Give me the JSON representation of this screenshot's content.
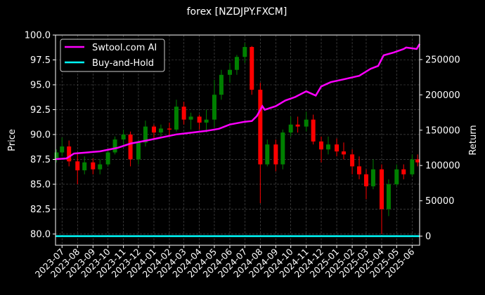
{
  "chart_data": {
    "type": "candlestick+line",
    "title": "forex [NZDJPY.FXCM]",
    "ylabel_left": "Price",
    "ylabel_right": "Return",
    "xlim": [
      "2023-06-18",
      "2025-06-16"
    ],
    "ylim_left": [
      78.87,
      100.0
    ],
    "ylim_right": [
      -12900,
      284700
    ],
    "yticks_left": [
      "80.0",
      "82.5",
      "85.0",
      "87.5",
      "90.0",
      "92.5",
      "95.0",
      "97.5",
      "100.0"
    ],
    "yticks_right": [
      "0",
      "50000",
      "100000",
      "150000",
      "200000",
      "250000"
    ],
    "xticks": [
      "2023-07",
      "2023-08",
      "2023-09",
      "2023-10",
      "2023-11",
      "2023-12",
      "2024-01",
      "2024-02",
      "2024-03",
      "2024-04",
      "2024-05",
      "2024-06",
      "2024-07",
      "2024-08",
      "2024-09",
      "2024-10",
      "2024-11",
      "2024-12",
      "2025-01",
      "2025-02",
      "2025-03",
      "2025-04",
      "2025-05",
      "2025-06"
    ],
    "grid": true,
    "legend_placement": "top-left",
    "colors": {
      "background": "#000000",
      "up": "#008000",
      "down": "#ff0000",
      "strategy": "#ff00ff",
      "buy_hold": "#00ffff",
      "grid": "#555555",
      "axis": "#ffffff"
    },
    "candles_columns": [
      "date",
      "open",
      "high",
      "low",
      "close"
    ],
    "candles": [
      [
        "2023-06-20",
        87.5,
        88.5,
        87.2,
        88.2
      ],
      [
        "2023-07-01",
        88.2,
        89.7,
        87.8,
        88.8
      ],
      [
        "2023-07-15",
        88.8,
        89.4,
        86.8,
        87.3
      ],
      [
        "2023-08-01",
        87.3,
        88.2,
        85.0,
        86.4
      ],
      [
        "2023-08-15",
        86.4,
        87.8,
        86.0,
        87.2
      ],
      [
        "2023-09-01",
        87.2,
        87.6,
        86.0,
        86.5
      ],
      [
        "2023-09-15",
        86.5,
        87.5,
        86.0,
        87.0
      ],
      [
        "2023-10-01",
        87.0,
        88.5,
        86.8,
        88.2
      ],
      [
        "2023-10-15",
        88.2,
        89.8,
        88.0,
        89.5
      ],
      [
        "2023-11-01",
        89.5,
        90.5,
        88.8,
        90.0
      ],
      [
        "2023-11-15",
        90.0,
        90.3,
        86.8,
        87.5
      ],
      [
        "2023-12-01",
        87.5,
        89.5,
        87.0,
        89.2
      ],
      [
        "2023-12-15",
        89.2,
        91.4,
        88.8,
        90.8
      ],
      [
        "2024-01-01",
        90.8,
        91.0,
        89.6,
        90.2
      ],
      [
        "2024-01-15",
        90.2,
        91.0,
        89.8,
        90.6
      ],
      [
        "2024-02-01",
        90.6,
        91.2,
        89.8,
        90.5
      ],
      [
        "2024-02-15",
        90.5,
        93.5,
        90.3,
        92.8
      ],
      [
        "2024-03-01",
        92.8,
        93.3,
        91.0,
        91.5
      ],
      [
        "2024-03-15",
        91.5,
        92.2,
        90.5,
        91.8
      ],
      [
        "2024-04-01",
        91.8,
        92.0,
        90.5,
        91.2
      ],
      [
        "2024-04-15",
        91.2,
        92.5,
        90.2,
        91.5
      ],
      [
        "2024-05-01",
        91.5,
        95.5,
        90.8,
        94.0
      ],
      [
        "2024-05-15",
        94.0,
        96.5,
        93.5,
        96.0
      ],
      [
        "2024-06-01",
        96.0,
        97.2,
        95.2,
        96.5
      ],
      [
        "2024-06-15",
        96.5,
        98.0,
        96.0,
        97.8
      ],
      [
        "2024-07-01",
        97.8,
        99.2,
        97.2,
        98.8
      ],
      [
        "2024-07-15",
        98.8,
        98.9,
        94.0,
        94.5
      ],
      [
        "2024-08-01",
        94.5,
        95.2,
        83.1,
        87.0
      ],
      [
        "2024-08-15",
        87.0,
        89.5,
        86.8,
        89.0
      ],
      [
        "2024-09-01",
        89.0,
        89.5,
        86.3,
        87.0
      ],
      [
        "2024-09-15",
        87.0,
        90.5,
        86.5,
        90.2
      ],
      [
        "2024-10-01",
        90.2,
        91.8,
        89.8,
        91.0
      ],
      [
        "2024-10-15",
        91.0,
        91.8,
        90.2,
        90.8
      ],
      [
        "2024-11-01",
        90.8,
        92.3,
        90.3,
        91.5
      ],
      [
        "2024-11-15",
        91.5,
        92.0,
        89.0,
        89.3
      ],
      [
        "2024-12-01",
        89.3,
        89.8,
        87.2,
        88.5
      ],
      [
        "2024-12-15",
        88.5,
        89.8,
        88.0,
        89.0
      ],
      [
        "2025-01-01",
        89.0,
        89.6,
        87.8,
        88.3
      ],
      [
        "2025-01-15",
        88.3,
        89.2,
        87.5,
        88.0
      ],
      [
        "2025-02-01",
        88.0,
        88.5,
        86.0,
        86.8
      ],
      [
        "2025-02-15",
        86.8,
        87.8,
        85.5,
        86.0
      ],
      [
        "2025-03-01",
        86.0,
        86.5,
        83.5,
        84.8
      ],
      [
        "2025-03-15",
        84.8,
        87.5,
        84.5,
        86.5
      ],
      [
        "2025-04-01",
        86.5,
        87.0,
        80.0,
        82.5
      ],
      [
        "2025-04-15",
        82.5,
        85.5,
        81.8,
        85.0
      ],
      [
        "2025-05-01",
        85.0,
        87.0,
        84.8,
        86.5
      ],
      [
        "2025-05-15",
        86.5,
        87.0,
        85.5,
        86.0
      ],
      [
        "2025-06-01",
        86.0,
        88.0,
        85.8,
        87.5
      ],
      [
        "2025-06-12",
        87.5,
        88.0,
        86.8,
        87.2
      ]
    ],
    "series": [
      {
        "name": "Swtool.com AI",
        "axis": "right",
        "color": "#ff00ff",
        "points": [
          [
            "2023-06-18",
            109000
          ],
          [
            "2023-07-10",
            110000
          ],
          [
            "2023-07-25",
            117000
          ],
          [
            "2023-09-15",
            120000
          ],
          [
            "2023-10-20",
            125000
          ],
          [
            "2023-11-15",
            131000
          ],
          [
            "2023-12-15",
            135000
          ],
          [
            "2024-02-15",
            144000
          ],
          [
            "2024-04-15",
            149000
          ],
          [
            "2024-05-10",
            152000
          ],
          [
            "2024-06-01",
            158000
          ],
          [
            "2024-07-01",
            162000
          ],
          [
            "2024-07-15",
            163000
          ],
          [
            "2024-07-25",
            170000
          ],
          [
            "2024-08-05",
            184000
          ],
          [
            "2024-08-10",
            179000
          ],
          [
            "2024-09-01",
            184000
          ],
          [
            "2024-09-20",
            192000
          ],
          [
            "2024-10-10",
            197000
          ],
          [
            "2024-11-01",
            205000
          ],
          [
            "2024-11-20",
            199000
          ],
          [
            "2024-12-01",
            212000
          ],
          [
            "2024-12-20",
            218000
          ],
          [
            "2025-01-15",
            222000
          ],
          [
            "2025-02-15",
            227000
          ],
          [
            "2025-03-10",
            237000
          ],
          [
            "2025-03-25",
            241000
          ],
          [
            "2025-04-05",
            256000
          ],
          [
            "2025-04-25",
            260000
          ],
          [
            "2025-05-15",
            265000
          ],
          [
            "2025-05-20",
            267000
          ],
          [
            "2025-06-10",
            265000
          ],
          [
            "2025-06-16",
            272000
          ]
        ]
      },
      {
        "name": "Buy-and-Hold",
        "axis": "right",
        "color": "#00ffff",
        "points": [
          [
            "2023-06-18",
            0
          ],
          [
            "2025-06-16",
            0
          ]
        ]
      }
    ]
  }
}
